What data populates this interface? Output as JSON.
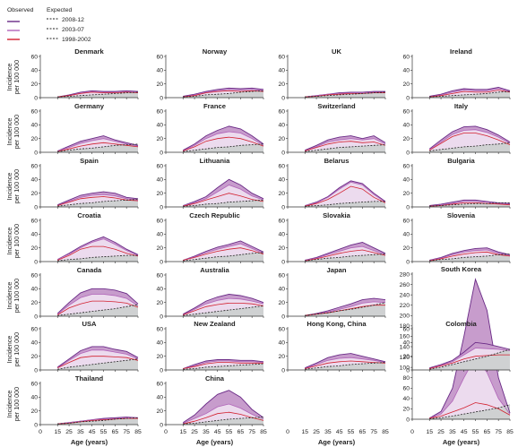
{
  "legend": {
    "observed_label": "Observed",
    "expected_label": "Expected",
    "entries": [
      {
        "period": "2008-12",
        "color": "#6a2a86"
      },
      {
        "period": "2003-07",
        "color": "#b063b8"
      },
      {
        "period": "1998-2002",
        "color": "#d2202f"
      }
    ]
  },
  "colors": {
    "outer_fill": "#c79ccc",
    "inner_fill": "#ecdbee",
    "expected_fill": "#cfd1d2",
    "obs_2008": "#6a2a86",
    "obs_2003": "#b063b8",
    "obs_1998": "#d2202f",
    "expected_line": "#222222"
  },
  "axes": {
    "ylabel": [
      "Incidence",
      "per 100 000"
    ],
    "xlabel": "Age (years)",
    "x_ticks": [
      0,
      15,
      25,
      35,
      45,
      55,
      65,
      75,
      85
    ],
    "y_ticks_small": [
      0,
      20,
      40,
      60
    ],
    "y_ticks_korea": [
      0,
      20,
      40,
      60,
      80,
      100,
      120,
      140,
      160,
      180,
      200,
      220,
      240,
      260,
      280
    ]
  },
  "chart_data": {
    "type": "area",
    "ages": [
      15,
      25,
      35,
      45,
      55,
      65,
      75,
      85
    ],
    "ylim": [
      0,
      60
    ],
    "ylim_korea": [
      0,
      280
    ],
    "series_names": [
      "2008-12",
      "2003-07",
      "1998-2002",
      "Expected"
    ],
    "panels": [
      {
        "name": "Denmark",
        "o08": [
          1,
          4,
          8,
          10,
          9,
          9,
          10,
          9
        ],
        "o03": [
          1,
          3,
          7,
          9,
          8,
          8,
          9,
          8
        ],
        "o98": [
          1,
          3,
          6,
          8,
          7,
          7,
          8,
          7
        ],
        "exp": [
          1,
          2,
          3,
          4,
          5,
          6,
          7,
          8
        ]
      },
      {
        "name": "Norway",
        "o08": [
          2,
          5,
          9,
          12,
          14,
          13,
          14,
          12
        ],
        "o03": [
          1,
          4,
          8,
          10,
          12,
          11,
          12,
          10
        ],
        "o98": [
          1,
          3,
          7,
          9,
          10,
          9,
          10,
          9
        ],
        "exp": [
          1,
          2,
          4,
          5,
          6,
          8,
          9,
          10
        ]
      },
      {
        "name": "UK",
        "o08": [
          1,
          3,
          5,
          7,
          8,
          8,
          9,
          9
        ],
        "o03": [
          1,
          3,
          5,
          6,
          7,
          7,
          8,
          8
        ],
        "o98": [
          1,
          2,
          4,
          5,
          6,
          6,
          7,
          7
        ],
        "exp": [
          1,
          2,
          3,
          4,
          5,
          6,
          7,
          8
        ]
      },
      {
        "name": "Ireland",
        "o08": [
          2,
          5,
          10,
          13,
          12,
          12,
          15,
          10
        ],
        "o03": [
          1,
          4,
          8,
          11,
          10,
          10,
          13,
          9
        ],
        "o98": [
          1,
          3,
          6,
          9,
          8,
          8,
          11,
          8
        ],
        "exp": [
          1,
          2,
          3,
          4,
          5,
          6,
          8,
          9
        ]
      },
      {
        "name": "Germany",
        "o08": [
          2,
          9,
          16,
          20,
          24,
          18,
          14,
          10
        ],
        "o03": [
          2,
          7,
          13,
          17,
          20,
          16,
          12,
          9
        ],
        "o98": [
          1,
          5,
          9,
          12,
          14,
          12,
          10,
          8
        ],
        "exp": [
          1,
          3,
          5,
          6,
          8,
          10,
          11,
          12
        ]
      },
      {
        "name": "France",
        "o08": [
          3,
          12,
          24,
          32,
          38,
          34,
          24,
          12
        ],
        "o03": [
          2,
          10,
          20,
          27,
          30,
          28,
          20,
          10
        ],
        "o98": [
          2,
          8,
          16,
          20,
          22,
          20,
          15,
          9
        ],
        "exp": [
          1,
          3,
          5,
          7,
          8,
          10,
          11,
          12
        ]
      },
      {
        "name": "Switzerland",
        "o08": [
          3,
          10,
          18,
          22,
          24,
          20,
          24,
          14
        ],
        "o03": [
          2,
          8,
          15,
          18,
          20,
          18,
          20,
          12
        ],
        "o98": [
          2,
          7,
          12,
          15,
          16,
          14,
          15,
          10
        ],
        "exp": [
          1,
          3,
          5,
          7,
          8,
          9,
          10,
          11
        ]
      },
      {
        "name": "Italy",
        "o08": [
          5,
          18,
          30,
          37,
          38,
          33,
          25,
          15
        ],
        "o03": [
          4,
          15,
          26,
          32,
          33,
          29,
          22,
          13
        ],
        "o98": [
          3,
          13,
          23,
          28,
          28,
          24,
          18,
          11
        ],
        "exp": [
          2,
          4,
          6,
          8,
          9,
          11,
          12,
          14
        ]
      },
      {
        "name": "Spain",
        "o08": [
          3,
          10,
          17,
          20,
          22,
          20,
          14,
          12
        ],
        "o03": [
          2,
          8,
          14,
          17,
          18,
          16,
          12,
          10
        ],
        "o98": [
          2,
          7,
          12,
          14,
          15,
          13,
          10,
          9
        ],
        "exp": [
          1,
          3,
          5,
          6,
          8,
          9,
          10,
          11
        ]
      },
      {
        "name": "Lithuania",
        "o08": [
          2,
          8,
          15,
          28,
          40,
          32,
          20,
          12
        ],
        "o03": [
          2,
          6,
          12,
          22,
          32,
          26,
          16,
          10
        ],
        "o98": [
          1,
          5,
          10,
          15,
          20,
          16,
          11,
          8
        ],
        "exp": [
          1,
          2,
          4,
          5,
          7,
          8,
          9,
          10
        ]
      },
      {
        "name": "Belarus",
        "o08": [
          2,
          7,
          15,
          28,
          38,
          34,
          20,
          8
        ],
        "o03": [
          2,
          6,
          14,
          26,
          36,
          32,
          18,
          7
        ],
        "o98": [
          1,
          5,
          11,
          20,
          30,
          26,
          14,
          6
        ],
        "exp": [
          1,
          2,
          3,
          5,
          6,
          7,
          8,
          8
        ]
      },
      {
        "name": "Bulgaria",
        "o08": [
          2,
          4,
          7,
          10,
          10,
          8,
          6,
          5
        ],
        "o03": [
          1,
          3,
          5,
          8,
          8,
          7,
          5,
          4
        ],
        "o98": [
          1,
          2,
          4,
          6,
          6,
          5,
          4,
          3
        ],
        "exp": [
          1,
          2,
          3,
          4,
          5,
          5,
          6,
          6
        ]
      },
      {
        "name": "Croatia",
        "o08": [
          3,
          12,
          22,
          30,
          36,
          28,
          18,
          10
        ],
        "o03": [
          3,
          11,
          20,
          28,
          33,
          25,
          16,
          9
        ],
        "o98": [
          2,
          9,
          18,
          22,
          22,
          18,
          12,
          8
        ],
        "exp": [
          1,
          3,
          4,
          6,
          7,
          8,
          9,
          9
        ]
      },
      {
        "name": "Czech Republic",
        "o08": [
          2,
          8,
          15,
          21,
          25,
          30,
          22,
          14
        ],
        "o03": [
          2,
          7,
          13,
          18,
          22,
          26,
          19,
          12
        ],
        "o98": [
          2,
          6,
          11,
          15,
          18,
          20,
          16,
          11
        ],
        "exp": [
          1,
          3,
          5,
          7,
          8,
          10,
          12,
          13
        ]
      },
      {
        "name": "Slovakia",
        "o08": [
          2,
          6,
          12,
          18,
          24,
          28,
          20,
          12
        ],
        "o03": [
          2,
          5,
          10,
          15,
          20,
          22,
          16,
          10
        ],
        "o98": [
          1,
          4,
          8,
          12,
          15,
          17,
          13,
          9
        ],
        "exp": [
          1,
          3,
          5,
          6,
          8,
          9,
          10,
          11
        ]
      },
      {
        "name": "Slovenia",
        "o08": [
          2,
          6,
          12,
          16,
          19,
          20,
          14,
          10
        ],
        "o03": [
          2,
          5,
          10,
          14,
          16,
          17,
          12,
          9
        ],
        "o98": [
          1,
          4,
          8,
          11,
          13,
          14,
          10,
          8
        ],
        "exp": [
          1,
          3,
          4,
          6,
          7,
          8,
          10,
          11
        ]
      },
      {
        "name": "Canada",
        "o08": [
          4,
          20,
          34,
          40,
          40,
          38,
          33,
          18
        ],
        "o03": [
          3,
          16,
          27,
          32,
          32,
          30,
          26,
          15
        ],
        "o98": [
          2,
          12,
          18,
          22,
          22,
          21,
          19,
          13
        ],
        "exp": [
          1,
          3,
          5,
          7,
          9,
          11,
          14,
          17
        ]
      },
      {
        "name": "Australia",
        "o08": [
          3,
          12,
          22,
          28,
          32,
          30,
          26,
          20
        ],
        "o03": [
          2,
          10,
          18,
          23,
          26,
          25,
          22,
          18
        ],
        "o98": [
          2,
          8,
          14,
          17,
          19,
          19,
          18,
          15
        ],
        "exp": [
          1,
          3,
          5,
          7,
          9,
          11,
          13,
          15
        ]
      },
      {
        "name": "Japan",
        "o08": [
          1,
          4,
          8,
          13,
          18,
          24,
          26,
          24
        ],
        "o03": [
          1,
          3,
          6,
          10,
          14,
          19,
          21,
          20
        ],
        "o98": [
          1,
          3,
          5,
          8,
          11,
          14,
          16,
          16
        ],
        "exp": [
          1,
          3,
          5,
          8,
          10,
          13,
          16,
          20
        ]
      },
      {
        "name": "South Korea",
        "o08": [
          2,
          15,
          60,
          160,
          270,
          210,
          80,
          12
        ],
        "o03": [
          2,
          10,
          35,
          80,
          120,
          90,
          40,
          10
        ],
        "o98": [
          2,
          6,
          14,
          22,
          32,
          28,
          20,
          8
        ],
        "exp": [
          1,
          3,
          6,
          10,
          14,
          18,
          22,
          28
        ]
      },
      {
        "name": "USA",
        "o08": [
          4,
          16,
          28,
          34,
          34,
          30,
          27,
          18
        ],
        "o03": [
          3,
          14,
          24,
          29,
          29,
          26,
          23,
          16
        ],
        "o98": [
          3,
          11,
          18,
          20,
          20,
          19,
          18,
          14
        ],
        "exp": [
          1,
          4,
          6,
          8,
          10,
          12,
          14,
          16
        ]
      },
      {
        "name": "New Zealand",
        "o08": [
          2,
          8,
          13,
          15,
          15,
          14,
          14,
          12
        ],
        "o03": [
          2,
          6,
          11,
          13,
          13,
          12,
          12,
          11
        ],
        "o98": [
          2,
          5,
          9,
          11,
          11,
          10,
          10,
          10
        ],
        "exp": [
          1,
          2,
          4,
          5,
          6,
          7,
          8,
          9
        ]
      },
      {
        "name": "Hong Kong, China",
        "o08": [
          3,
          10,
          18,
          22,
          24,
          20,
          16,
          12
        ],
        "o03": [
          2,
          8,
          14,
          17,
          18,
          16,
          14,
          11
        ],
        "o98": [
          2,
          6,
          10,
          12,
          13,
          12,
          11,
          10
        ],
        "exp": [
          1,
          3,
          5,
          6,
          8,
          9,
          10,
          11
        ]
      },
      {
        "name": "Colombia",
        "o08": [
          3,
          8,
          14,
          26,
          40,
          38,
          34,
          30
        ],
        "o03": [
          2,
          7,
          12,
          22,
          32,
          31,
          30,
          28
        ],
        "o98": [
          2,
          6,
          10,
          16,
          20,
          21,
          22,
          22
        ],
        "exp": [
          1,
          4,
          8,
          12,
          16,
          20,
          25,
          30
        ]
      },
      {
        "name": "Thailand",
        "o08": [
          1,
          3,
          5,
          7,
          9,
          10,
          11,
          10
        ],
        "o03": [
          1,
          3,
          5,
          7,
          8,
          9,
          10,
          10
        ],
        "o98": [
          1,
          2,
          4,
          6,
          7,
          8,
          9,
          9
        ],
        "exp": [
          1,
          2,
          4,
          5,
          6,
          8,
          9,
          10
        ]
      },
      {
        "name": "China",
        "o08": [
          3,
          14,
          30,
          44,
          50,
          40,
          22,
          10
        ],
        "o03": [
          2,
          9,
          16,
          26,
          30,
          24,
          15,
          8
        ],
        "o98": [
          1,
          5,
          10,
          16,
          18,
          15,
          10,
          6
        ],
        "exp": [
          1,
          2,
          4,
          6,
          8,
          9,
          10,
          11
        ]
      }
    ]
  }
}
